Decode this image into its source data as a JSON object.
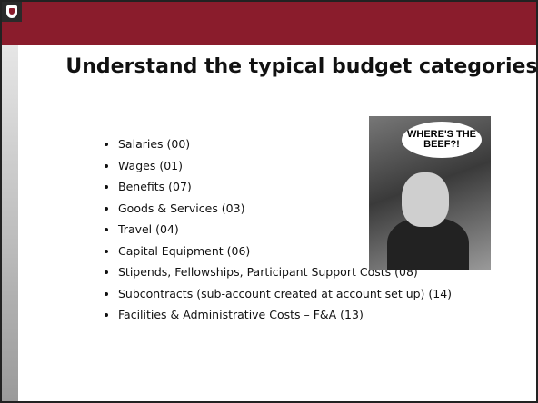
{
  "slide": {
    "title": "Understand the typical budget categories",
    "bullets": [
      "Salaries (00)",
      "Wages (01)",
      "Benefits (07)",
      "Goods & Services (03)",
      "Travel (04)",
      "Capital Equipment (06)",
      "Stipends, Fellowships, Participant Support Costs (08)",
      "Subcontracts (sub-account created at account set up) (14)",
      "Facilities & Administrative Costs – F&A (13)"
    ],
    "image_text": "WHERE'S THE BEEF?!"
  }
}
